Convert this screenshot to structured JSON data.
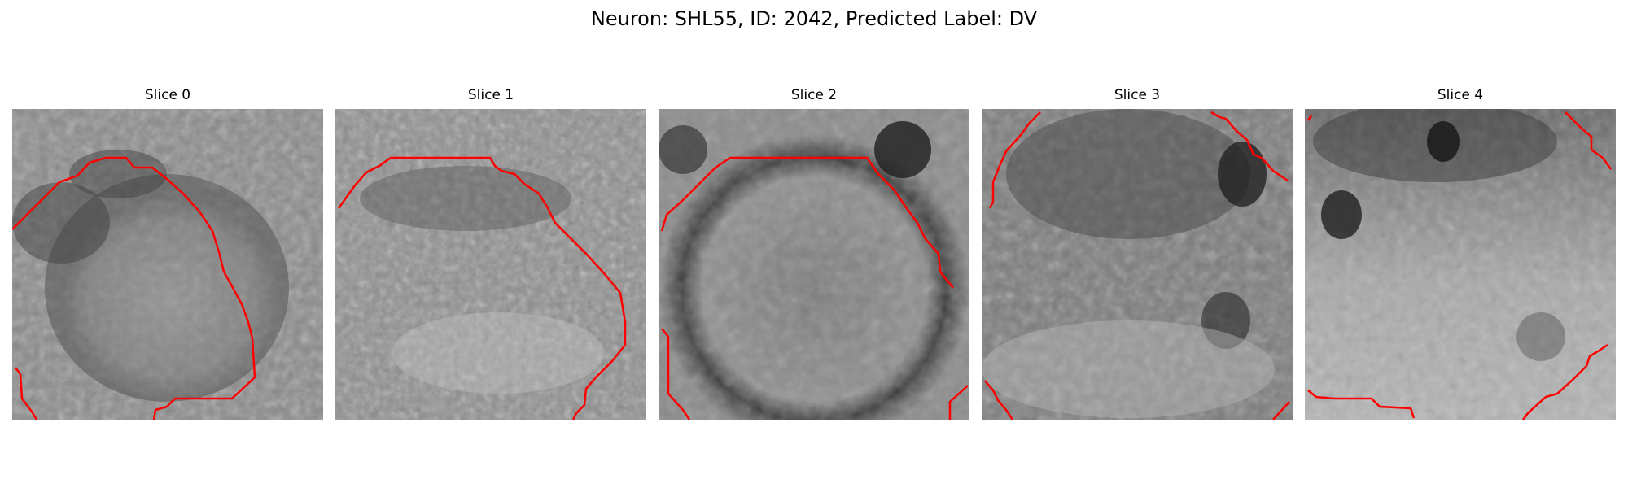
{
  "figure": {
    "title": "Neuron: SHL55, ID: 2042, Predicted Label: DV"
  },
  "panels": [
    {
      "title": "Slice 0"
    },
    {
      "title": "Slice 1"
    },
    {
      "title": "Slice 2"
    },
    {
      "title": "Slice 3"
    },
    {
      "title": "Slice 4"
    }
  ],
  "colors": {
    "contour": "#ff0000",
    "background": "#ffffff"
  }
}
